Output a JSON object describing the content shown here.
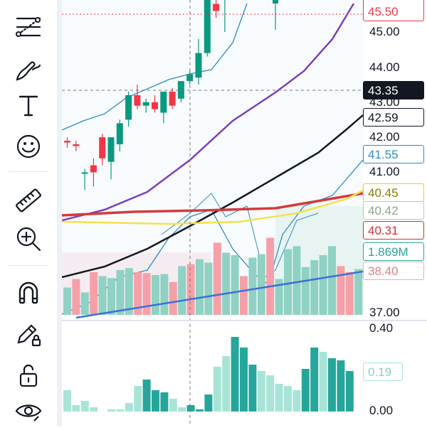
{
  "toolbar": {
    "tools": [
      {
        "name": "trend-line-tool",
        "icon": "trend-line-icon"
      },
      {
        "name": "brush-tool",
        "icon": "brush-icon"
      },
      {
        "name": "text-tool",
        "icon": "text-icon",
        "glyph": "T"
      },
      {
        "name": "emoji-tool",
        "icon": "emoji-icon"
      },
      {
        "name": "measure-tool",
        "icon": "ruler-icon"
      },
      {
        "name": "zoom-tool",
        "icon": "zoom-in-icon"
      },
      {
        "name": "magnet-tool",
        "icon": "magnet-icon"
      },
      {
        "name": "lock-drawings-tool",
        "icon": "pencil-lock-icon"
      },
      {
        "name": "lock-tool",
        "icon": "unlock-icon"
      },
      {
        "name": "visibility-tool",
        "icon": "eye-icon"
      }
    ]
  },
  "price_axis": {
    "ticks": [
      "45.00",
      "44.00",
      "43.00",
      "42.00",
      "41.00",
      "37.00"
    ],
    "labels": [
      {
        "name": "price-label-45-50",
        "text": "45.50",
        "bg": "#ffffff",
        "border": "#f23645",
        "color": "#f23645"
      },
      {
        "name": "crosshair-price-label",
        "text": "43.35",
        "bg": "#131722",
        "border": "#131722",
        "color": "#ffffff"
      },
      {
        "name": "ma-black-label",
        "text": "42.59",
        "bg": "#ffffff",
        "border": "#131722",
        "color": "#131722"
      },
      {
        "name": "bb-lower-label",
        "text": "41.55",
        "bg": "#ffffff",
        "border": "#2e8bc6",
        "color": "#2e8bc6"
      },
      {
        "name": "ma-yellow-label",
        "text": "40.45",
        "bg": "#ffffff",
        "border": "#f5d000",
        "color": "#8a7a00"
      },
      {
        "name": "green-zone-label",
        "text": "40.42",
        "bg": "#ffffff",
        "border": "#a5d6a7",
        "color": "#8aa88a"
      },
      {
        "name": "ma-red-label",
        "text": "40.31",
        "bg": "#ffffff",
        "border": "#d32f2f",
        "color": "#d32f2f"
      },
      {
        "name": "volume-label",
        "text": "1.869M",
        "bg": "#ffffff",
        "border": "#26a69a",
        "color": "#26a69a"
      },
      {
        "name": "red-zone-label",
        "text": "38.40",
        "bg": "#ffffff",
        "border": "#f4a9a9",
        "color": "#e08080"
      }
    ]
  },
  "indicator_axis": {
    "ticks": [
      "0.40",
      "0.00"
    ],
    "label": {
      "text": "0.19",
      "border": "#a5e3d5",
      "color": "#8fcfbf"
    }
  },
  "colors": {
    "up": "#089981",
    "down": "#f23645",
    "ma_purple": "#7b3fbf",
    "ma_black": "#131722",
    "ma_red": "#d43a3a",
    "ma_yellow": "#f5e14b",
    "bb_blue": "#2e8bc6",
    "trend_blue": "#3a6fd8"
  },
  "chart_data": {
    "type": "candlestick",
    "candles": [
      {
        "o": 41.9,
        "h": 42.0,
        "l": 41.7,
        "c": 41.85
      },
      {
        "o": 41.8,
        "h": 41.9,
        "l": 41.6,
        "c": 41.75
      },
      {
        "o": 41.0,
        "h": 41.1,
        "l": 40.5,
        "c": 41.0
      },
      {
        "o": 41.2,
        "h": 41.4,
        "l": 40.6,
        "c": 41.0
      },
      {
        "o": 42.0,
        "h": 42.1,
        "l": 41.2,
        "c": 41.4
      },
      {
        "o": 41.3,
        "h": 42.0,
        "l": 40.8,
        "c": 42.0
      },
      {
        "o": 41.8,
        "h": 42.5,
        "l": 41.6,
        "c": 42.4
      },
      {
        "o": 42.5,
        "h": 43.3,
        "l": 42.3,
        "c": 43.2
      },
      {
        "o": 43.2,
        "h": 43.5,
        "l": 42.8,
        "c": 42.9
      },
      {
        "o": 42.9,
        "h": 43.1,
        "l": 42.7,
        "c": 43.0
      },
      {
        "o": 43.0,
        "h": 43.2,
        "l": 42.7,
        "c": 42.8
      },
      {
        "o": 42.7,
        "h": 43.3,
        "l": 42.4,
        "c": 43.3
      },
      {
        "o": 43.3,
        "h": 43.4,
        "l": 42.8,
        "c": 42.9
      },
      {
        "o": 43.1,
        "h": 43.6,
        "l": 43.0,
        "c": 43.6
      },
      {
        "o": 43.6,
        "h": 43.9,
        "l": 43.5,
        "c": 43.8
      },
      {
        "o": 43.7,
        "h": 44.8,
        "l": 43.5,
        "c": 44.4
      },
      {
        "o": 44.4,
        "h": 46.0,
        "l": 44.3,
        "c": 46.0
      },
      {
        "o": 45.8,
        "h": 46.1,
        "l": 45.4,
        "c": 45.6
      },
      {
        "o": 46.5,
        "h": 47.0,
        "l": 45.0,
        "c": 47.0
      }
    ],
    "volume": [
      0.55,
      0.72,
      0.45,
      0.86,
      0.78,
      0.74,
      0.9,
      0.94,
      0.86,
      0.84,
      0.8,
      0.82,
      0.66,
      0.98,
      1.02,
      1.12,
      1.05,
      1.45,
      1.25,
      1.2,
      0.78,
      1.15,
      1.22,
      1.55,
      0.72,
      1.32,
      1.38,
      0.96,
      1.1,
      1.2,
      1.38,
      0.98,
      0.86,
      0.92
    ],
    "indicator": [
      0.1,
      0.03,
      0.05,
      0.02,
      0.0,
      0.01,
      0.01,
      0.04,
      0.12,
      0.15,
      0.1,
      0.09,
      0.06,
      0.02,
      0.03,
      0.01,
      0.08,
      0.21,
      0.26,
      0.35,
      0.3,
      0.22,
      0.19,
      0.17,
      0.13,
      0.12,
      0.1,
      0.2,
      0.3,
      0.28,
      0.25,
      0.24,
      0.19
    ],
    "indicator_ylim": [
      0,
      0.4
    ]
  }
}
